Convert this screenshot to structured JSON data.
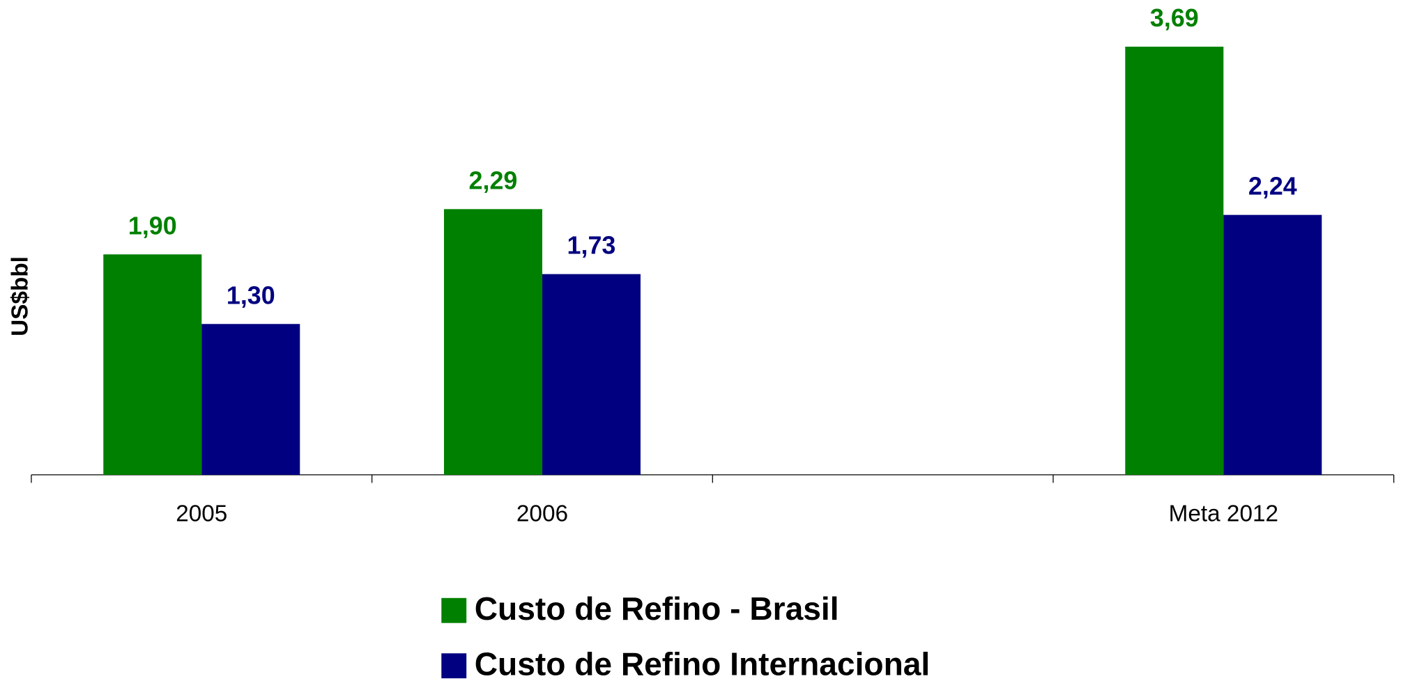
{
  "chart_data": {
    "type": "bar",
    "y_label": "US$bbl",
    "categories": [
      "2005",
      "2006",
      null,
      "Meta 2012"
    ],
    "series": [
      {
        "name": "Custo de Refino - Brasil",
        "color": "#008000",
        "values": [
          1.9,
          2.29,
          null,
          3.69
        ],
        "value_labels": [
          "1,90",
          "2,29",
          null,
          "3,69"
        ]
      },
      {
        "name": "Custo de Refino Internacional",
        "color": "#000080",
        "values": [
          1.3,
          1.73,
          null,
          2.24
        ],
        "value_labels": [
          "1,30",
          "1,73",
          null,
          "2,24"
        ]
      }
    ],
    "ylim": [
      0,
      4
    ]
  }
}
